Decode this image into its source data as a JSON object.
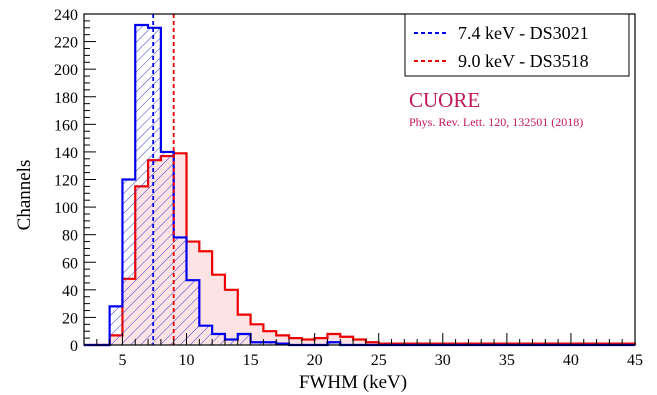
{
  "chart_data": {
    "type": "histogram",
    "xlabel": "FWHM (keV)",
    "ylabel": "Channels",
    "xlim": [
      2,
      45
    ],
    "ylim": [
      0,
      240
    ],
    "x_ticks": [
      5,
      10,
      15,
      20,
      25,
      30,
      35,
      40,
      45
    ],
    "y_ticks": [
      0,
      20,
      40,
      60,
      80,
      100,
      120,
      140,
      160,
      180,
      200,
      220,
      240
    ],
    "bin_width": 1,
    "bin_starts": [
      2,
      3,
      4,
      5,
      6,
      7,
      8,
      9,
      10,
      11,
      12,
      13,
      14,
      15,
      16,
      17,
      18,
      19,
      20,
      21,
      22,
      23,
      24,
      25,
      26,
      27,
      28,
      29,
      30,
      31,
      32,
      33,
      34,
      35,
      36,
      37,
      38,
      39,
      40,
      41,
      42,
      43,
      44
    ],
    "series": [
      {
        "name": "7.4 keV - DS3021",
        "color": "#0000ee",
        "marker": 7.4,
        "values": [
          0,
          0,
          28,
          120,
          232,
          230,
          140,
          78,
          47,
          14,
          8,
          4,
          8,
          2,
          2,
          1,
          0,
          0,
          0,
          2,
          0,
          0,
          0,
          0,
          0,
          0,
          0,
          0,
          0,
          0,
          0,
          0,
          0,
          0,
          0,
          0,
          0,
          0,
          0,
          0,
          0,
          0,
          0
        ]
      },
      {
        "name": "9.0 keV - DS3518",
        "color": "#ee0000",
        "marker": 9.0,
        "values": [
          0,
          0,
          7,
          48,
          115,
          134,
          137,
          139,
          75,
          68,
          51,
          40,
          22,
          15,
          10,
          7,
          5,
          4,
          5,
          8,
          6,
          4,
          2,
          1,
          1,
          1,
          1,
          1,
          1,
          1,
          1,
          1,
          1,
          1,
          1,
          1,
          1,
          1,
          1,
          1,
          1,
          1,
          1
        ]
      }
    ],
    "annotation": {
      "title": "CUORE",
      "citation": "Phys. Rev. Lett. 120, 132501 (2018)"
    },
    "legend_position": "top-right",
    "grid": false
  }
}
